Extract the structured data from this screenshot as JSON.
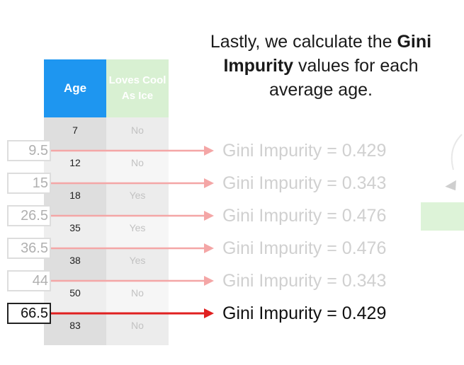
{
  "caption": {
    "part1": "Lastly, we calculate the ",
    "bold1": "Gini Impurity",
    "part2": " values for each average age."
  },
  "table": {
    "header_age": "Age",
    "header_loves": "Loves Cool As Ice",
    "rows": [
      {
        "age": "7",
        "loves": "No"
      },
      {
        "age": "12",
        "loves": "No"
      },
      {
        "age": "18",
        "loves": "Yes"
      },
      {
        "age": "35",
        "loves": "Yes"
      },
      {
        "age": "38",
        "loves": "Yes"
      },
      {
        "age": "50",
        "loves": "No"
      },
      {
        "age": "83",
        "loves": "No"
      }
    ]
  },
  "averages": [
    {
      "value": "9.5",
      "result": "Gini Impurity = 0.429"
    },
    {
      "value": "15",
      "result": "Gini Impurity = 0.343"
    },
    {
      "value": "26.5",
      "result": "Gini Impurity = 0.476"
    },
    {
      "value": "36.5",
      "result": "Gini Impurity = 0.476"
    },
    {
      "value": "44",
      "result": "Gini Impurity = 0.343"
    },
    {
      "value": "66.5",
      "result": "Gini Impurity = 0.429"
    }
  ],
  "active_index": 5,
  "colors": {
    "age_header": "#1e96f0",
    "loves_header": "#d8f0d2",
    "arrow_faded": "#f4a6a6",
    "arrow_active": "#e02020"
  }
}
